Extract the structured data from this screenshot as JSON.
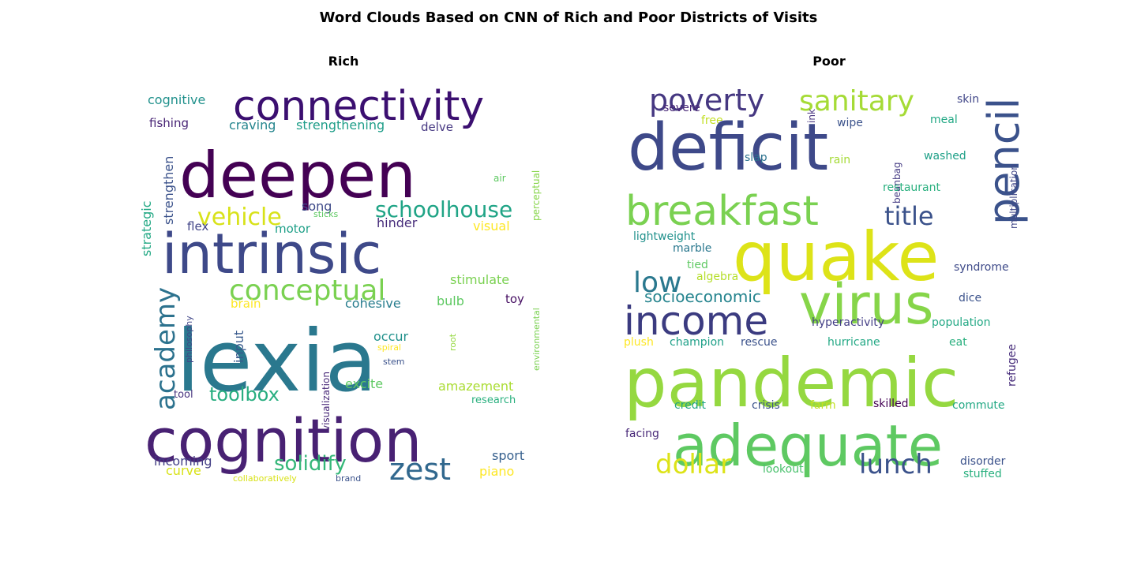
{
  "figure": {
    "title": "Word Clouds Based on CNN of Rich and Poor Districts of Visits"
  },
  "chart_data": [
    {
      "type": "wordcloud",
      "title": "Rich",
      "words": [
        {
          "text": "deepen",
          "color": "#440154"
        },
        {
          "text": "connectivity",
          "color": "#3b0f70"
        },
        {
          "text": "intrinsic",
          "color": "#3e4989"
        },
        {
          "text": "lexia",
          "color": "#2a788e"
        },
        {
          "text": "cognition",
          "color": "#482173"
        },
        {
          "text": "schoolhouse",
          "color": "#20a486"
        },
        {
          "text": "vehicle",
          "color": "#d8e219"
        },
        {
          "text": "conceptual",
          "color": "#7ad151"
        },
        {
          "text": "academy",
          "color": "#2c728e"
        },
        {
          "text": "toolbox",
          "color": "#28ae80"
        },
        {
          "text": "solidify",
          "color": "#35b779"
        },
        {
          "text": "zest",
          "color": "#31688e"
        },
        {
          "text": "cognitive",
          "color": "#21918c"
        },
        {
          "text": "craving",
          "color": "#25858e"
        },
        {
          "text": "strengthening",
          "color": "#1f9e89"
        },
        {
          "text": "fishing",
          "color": "#482475"
        },
        {
          "text": "delve",
          "color": "#453781"
        },
        {
          "text": "strengthen",
          "color": "#3b528b"
        },
        {
          "text": "strategic",
          "color": "#22a884"
        },
        {
          "text": "perceptual",
          "color": "#86d549"
        },
        {
          "text": "air",
          "color": "#5ec962"
        },
        {
          "text": "song",
          "color": "#3e4a89"
        },
        {
          "text": "sticks",
          "color": "#5ec962"
        },
        {
          "text": "flex",
          "color": "#414487"
        },
        {
          "text": "motor",
          "color": "#1fa088"
        },
        {
          "text": "hinder",
          "color": "#472d7b"
        },
        {
          "text": "visual",
          "color": "#fde725"
        },
        {
          "text": "stimulate",
          "color": "#7ad151"
        },
        {
          "text": "toy",
          "color": "#471063"
        },
        {
          "text": "brain",
          "color": "#fde725"
        },
        {
          "text": "cohesive",
          "color": "#287d8e"
        },
        {
          "text": "bulb",
          "color": "#5ec962"
        },
        {
          "text": "philosophy",
          "color": "#404688"
        },
        {
          "text": "input",
          "color": "#38598c"
        },
        {
          "text": "occur",
          "color": "#21918c"
        },
        {
          "text": "root",
          "color": "#95d840"
        },
        {
          "text": "spiral",
          "color": "#fde725"
        },
        {
          "text": "stem",
          "color": "#3b528b"
        },
        {
          "text": "environmental",
          "color": "#7ad151"
        },
        {
          "text": "excite",
          "color": "#5ec962"
        },
        {
          "text": "amazement",
          "color": "#aadc32"
        },
        {
          "text": "tool",
          "color": "#46327e"
        },
        {
          "text": "visualization",
          "color": "#482878"
        },
        {
          "text": "research",
          "color": "#2ab07f"
        },
        {
          "text": "sport",
          "color": "#355f8d"
        },
        {
          "text": "incoming",
          "color": "#433e85"
        },
        {
          "text": "curve",
          "color": "#d8e219"
        },
        {
          "text": "collaboratively",
          "color": "#d8e219"
        },
        {
          "text": "brand",
          "color": "#3b528b"
        },
        {
          "text": "piano",
          "color": "#fde725"
        }
      ]
    },
    {
      "type": "wordcloud",
      "title": "Poor",
      "words": [
        {
          "text": "poverty",
          "color": "#453781"
        },
        {
          "text": "sanitary",
          "color": "#a5db36"
        },
        {
          "text": "skin",
          "color": "#404688"
        },
        {
          "text": "severe",
          "color": "#482878"
        },
        {
          "text": "free",
          "color": "#c2df23"
        },
        {
          "text": "ink",
          "color": "#46327e"
        },
        {
          "text": "wipe",
          "color": "#3b528b"
        },
        {
          "text": "meal",
          "color": "#22a884"
        },
        {
          "text": "deficit",
          "color": "#3e4989"
        },
        {
          "text": "pencil",
          "color": "#3b528b"
        },
        {
          "text": "slap",
          "color": "#2c728e"
        },
        {
          "text": "rain",
          "color": "#a5db36"
        },
        {
          "text": "beanbag",
          "color": "#443a83"
        },
        {
          "text": "washed",
          "color": "#1fa088"
        },
        {
          "text": "multiplication",
          "color": "#404688"
        },
        {
          "text": "breakfast",
          "color": "#7ad151"
        },
        {
          "text": "restaurant",
          "color": "#2ab07f"
        },
        {
          "text": "title",
          "color": "#3b528b"
        },
        {
          "text": "quake",
          "color": "#dde318"
        },
        {
          "text": "lightweight",
          "color": "#21918c"
        },
        {
          "text": "marble",
          "color": "#2a788e"
        },
        {
          "text": "low",
          "color": "#2a788e"
        },
        {
          "text": "tied",
          "color": "#5ec962"
        },
        {
          "text": "algebra",
          "color": "#b5de2b"
        },
        {
          "text": "virus",
          "color": "#86d549"
        },
        {
          "text": "syndrome",
          "color": "#3e4a89"
        },
        {
          "text": "socioeconomic",
          "color": "#25848e"
        },
        {
          "text": "dice",
          "color": "#3b528b"
        },
        {
          "text": "income",
          "color": "#3b3b80"
        },
        {
          "text": "hyperactivity",
          "color": "#433e85"
        },
        {
          "text": "population",
          "color": "#22a884"
        },
        {
          "text": "plush",
          "color": "#fde725"
        },
        {
          "text": "champion",
          "color": "#1fa088"
        },
        {
          "text": "rescue",
          "color": "#3b528b"
        },
        {
          "text": "hurricane",
          "color": "#22a884"
        },
        {
          "text": "eat",
          "color": "#2ab07f"
        },
        {
          "text": "refugee",
          "color": "#472d7b"
        },
        {
          "text": "pandemic",
          "color": "#95d840"
        },
        {
          "text": "credit",
          "color": "#20a486"
        },
        {
          "text": "crisis",
          "color": "#3b528b"
        },
        {
          "text": "farm",
          "color": "#c2df23"
        },
        {
          "text": "skilled",
          "color": "#440154"
        },
        {
          "text": "commute",
          "color": "#22a884"
        },
        {
          "text": "adequate",
          "color": "#5ec962"
        },
        {
          "text": "facing",
          "color": "#482878"
        },
        {
          "text": "dollar",
          "color": "#dde318"
        },
        {
          "text": "lookout",
          "color": "#4ac16d"
        },
        {
          "text": "lunch",
          "color": "#3b528b"
        },
        {
          "text": "disorder",
          "color": "#3b528b"
        },
        {
          "text": "stuffed",
          "color": "#2ab07f"
        }
      ]
    }
  ]
}
